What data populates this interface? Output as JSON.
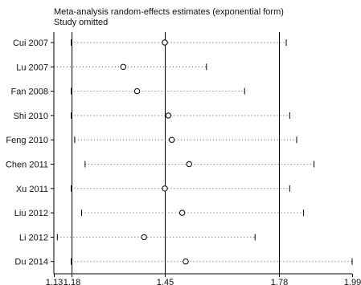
{
  "chart_data": {
    "type": "forest",
    "title": "Meta-analysis random-effects estimates (exponential form)",
    "subtitle": "Study omitted",
    "xticks": [
      1.13,
      1.18,
      1.45,
      1.78,
      1.99
    ],
    "xlim": [
      1.13,
      1.99
    ],
    "reference_lines": [
      1.18,
      1.45,
      1.78
    ],
    "studies": [
      {
        "name": "Cui 2007",
        "estimate": 1.45,
        "lower": 1.18,
        "upper": 1.8
      },
      {
        "name": "Lu 2007",
        "estimate": 1.33,
        "lower": 1.13,
        "upper": 1.57
      },
      {
        "name": "Fan 2008",
        "estimate": 1.37,
        "lower": 1.18,
        "upper": 1.68
      },
      {
        "name": "Shi 2010",
        "estimate": 1.46,
        "lower": 1.18,
        "upper": 1.81
      },
      {
        "name": "Feng 2010",
        "estimate": 1.47,
        "lower": 1.19,
        "upper": 1.83
      },
      {
        "name": "Chen 2011",
        "estimate": 1.52,
        "lower": 1.22,
        "upper": 1.88
      },
      {
        "name": "Xu 2011",
        "estimate": 1.45,
        "lower": 1.18,
        "upper": 1.81
      },
      {
        "name": "Liu 2012",
        "estimate": 1.5,
        "lower": 1.21,
        "upper": 1.85
      },
      {
        "name": "Li 2012",
        "estimate": 1.39,
        "lower": 1.14,
        "upper": 1.71
      },
      {
        "name": "Du 2014",
        "estimate": 1.51,
        "lower": 1.18,
        "upper": 1.99
      }
    ]
  }
}
